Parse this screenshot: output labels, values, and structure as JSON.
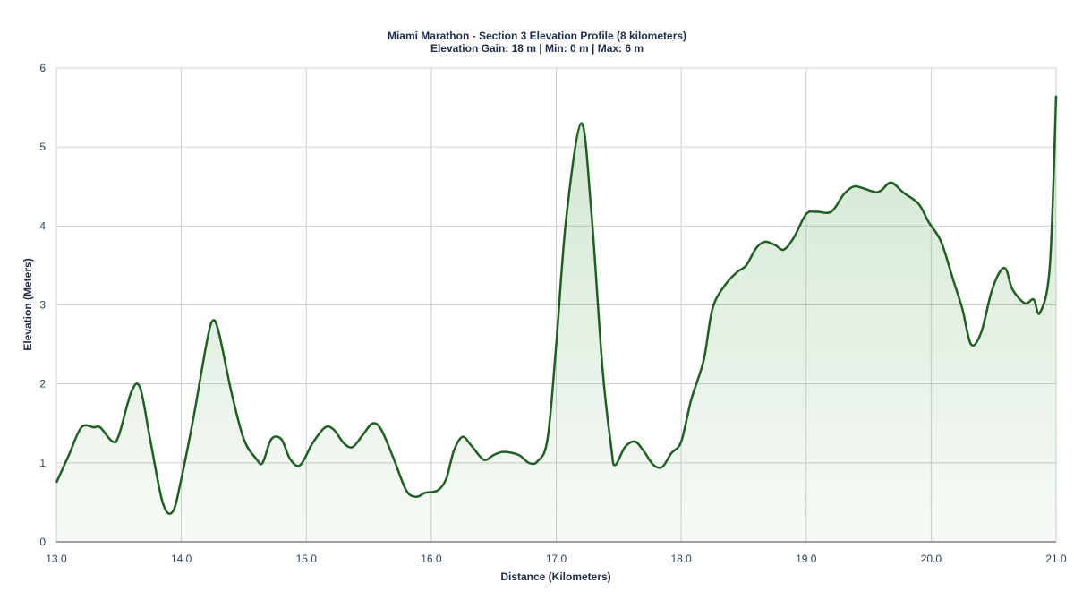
{
  "chart_data": {
    "type": "area",
    "title": "Miami Marathon - Section 3 Elevation Profile (8 kilometers)",
    "subtitle": "Elevation Gain: 18 m | Min: 0 m | Max: 6 m",
    "x_label": "Distance (Kilometers)",
    "y_label": "Elevation (Meters)",
    "color": "#1f5f22",
    "grid": true,
    "xlim": [
      13,
      21
    ],
    "xticks": [
      {
        "value": 13,
        "label": "13.0"
      },
      {
        "value": 14,
        "label": "14.0"
      },
      {
        "value": 15,
        "label": "15.0"
      },
      {
        "value": 16,
        "label": "16.0"
      },
      {
        "value": 17,
        "label": "17.0"
      },
      {
        "value": 18,
        "label": "18.0"
      },
      {
        "value": 19,
        "label": "19.0"
      },
      {
        "value": 20,
        "label": "20.0"
      },
      {
        "value": 21,
        "label": "21.0"
      }
    ],
    "ylim": [
      0,
      6
    ],
    "yticks": [
      0,
      1,
      2,
      3,
      4,
      5,
      6
    ],
    "x": [
      13.0,
      13.1,
      13.2,
      13.3,
      13.35,
      13.45,
      13.5,
      13.6,
      13.67,
      13.75,
      13.85,
      13.93,
      14.0,
      14.1,
      14.2,
      14.25,
      14.3,
      14.4,
      14.5,
      14.6,
      14.65,
      14.72,
      14.8,
      14.87,
      14.95,
      15.05,
      15.15,
      15.22,
      15.3,
      15.37,
      15.45,
      15.53,
      15.6,
      15.7,
      15.8,
      15.88,
      15.95,
      16.05,
      16.12,
      16.18,
      16.25,
      16.32,
      16.42,
      16.5,
      16.58,
      16.7,
      16.78,
      16.85,
      16.93,
      17.0,
      17.08,
      17.2,
      17.28,
      17.37,
      17.44,
      17.47,
      17.55,
      17.63,
      17.7,
      17.78,
      17.85,
      17.92,
      18.0,
      18.08,
      18.18,
      18.25,
      18.35,
      18.45,
      18.52,
      18.6,
      18.67,
      18.75,
      18.82,
      18.9,
      19.0,
      19.08,
      19.2,
      19.3,
      19.38,
      19.45,
      19.55,
      19.6,
      19.68,
      19.78,
      19.9,
      19.98,
      20.08,
      20.18,
      20.25,
      20.32,
      20.4,
      20.48,
      20.55,
      20.6,
      20.65,
      20.75,
      20.82,
      20.87,
      20.95,
      21.0
    ],
    "values": [
      0.75,
      1.1,
      1.45,
      1.45,
      1.45,
      1.27,
      1.35,
      1.9,
      1.95,
      1.3,
      0.5,
      0.38,
      0.8,
      1.6,
      2.5,
      2.8,
      2.65,
      1.9,
      1.3,
      1.05,
      1.0,
      1.3,
      1.3,
      1.05,
      0.97,
      1.25,
      1.45,
      1.42,
      1.25,
      1.2,
      1.35,
      1.5,
      1.42,
      1.05,
      0.65,
      0.57,
      0.62,
      0.65,
      0.8,
      1.15,
      1.33,
      1.22,
      1.04,
      1.1,
      1.14,
      1.1,
      1.0,
      1.02,
      1.3,
      2.5,
      4.1,
      5.3,
      4.2,
      2.2,
      1.2,
      0.97,
      1.2,
      1.27,
      1.15,
      0.97,
      0.95,
      1.12,
      1.27,
      1.8,
      2.3,
      2.95,
      3.25,
      3.42,
      3.5,
      3.72,
      3.8,
      3.76,
      3.7,
      3.85,
      4.15,
      4.18,
      4.18,
      4.4,
      4.5,
      4.48,
      4.43,
      4.45,
      4.55,
      4.42,
      4.28,
      4.05,
      3.8,
      3.3,
      2.95,
      2.5,
      2.65,
      3.15,
      3.42,
      3.45,
      3.2,
      3.02,
      3.07,
      2.9,
      3.5,
      5.65
    ]
  }
}
